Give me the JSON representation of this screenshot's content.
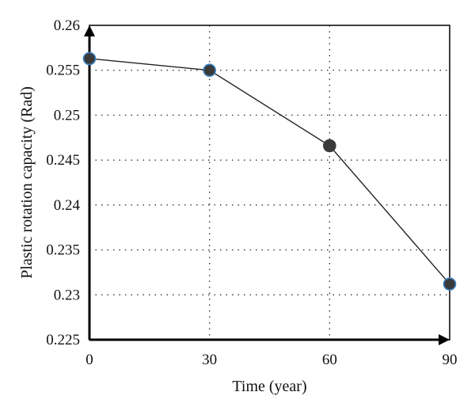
{
  "chart_data": {
    "type": "line",
    "xlabel": "Time (year)",
    "ylabel": "Plastic rotation capacity (Rad)",
    "xlim": [
      0,
      90
    ],
    "ylim": [
      0.225,
      0.26
    ],
    "x_ticks": [
      "0",
      "30",
      "60",
      "90"
    ],
    "y_ticks": [
      "0.225",
      "0.23",
      "0.235",
      "0.24",
      "0.245",
      "0.25",
      "0.255",
      "0.26"
    ],
    "grid": true,
    "series": [
      {
        "x": [
          0,
          30,
          60,
          90
        ],
        "y": [
          0.2563,
          0.255,
          0.2466,
          0.2312
        ],
        "marker_fill": [
          "#3a3a3a",
          "#3a3a3a",
          "#3a3a3a",
          "#3a3a3a"
        ],
        "marker_edge": [
          "#3b82c4",
          "#3b82c4",
          "#3a3a3a",
          "#3b82c4"
        ]
      }
    ]
  }
}
